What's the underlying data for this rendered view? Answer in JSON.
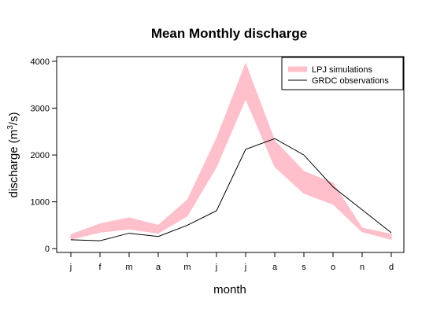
{
  "chart_data": {
    "type": "area",
    "title": "Mean Monthly discharge",
    "xlabel": "month",
    "ylabel_main": "discharge (m",
    "ylabel_sup": "3",
    "ylabel_end": "/s)",
    "categories": [
      "j",
      "f",
      "m",
      "a",
      "m",
      "j",
      "j",
      "a",
      "s",
      "o",
      "n",
      "d"
    ],
    "ylim": [
      -80,
      4100
    ],
    "yticks": [
      0,
      1000,
      2000,
      3000,
      4000
    ],
    "legend_position": "top-right",
    "grid": false,
    "series": [
      {
        "name": "LPJ simulations",
        "kind": "band",
        "color": "#ffc0cb",
        "lower": [
          200,
          350,
          420,
          330,
          700,
          1750,
          3200,
          1750,
          1180,
          950,
          360,
          200
        ],
        "upper": [
          300,
          530,
          660,
          500,
          1040,
          2350,
          3950,
          2300,
          1650,
          1400,
          440,
          310
        ]
      },
      {
        "name": "GRDC observations",
        "kind": "line",
        "color": "#000000",
        "values": [
          190,
          170,
          330,
          260,
          500,
          810,
          2120,
          2350,
          2000,
          1320,
          830,
          340
        ]
      }
    ]
  }
}
